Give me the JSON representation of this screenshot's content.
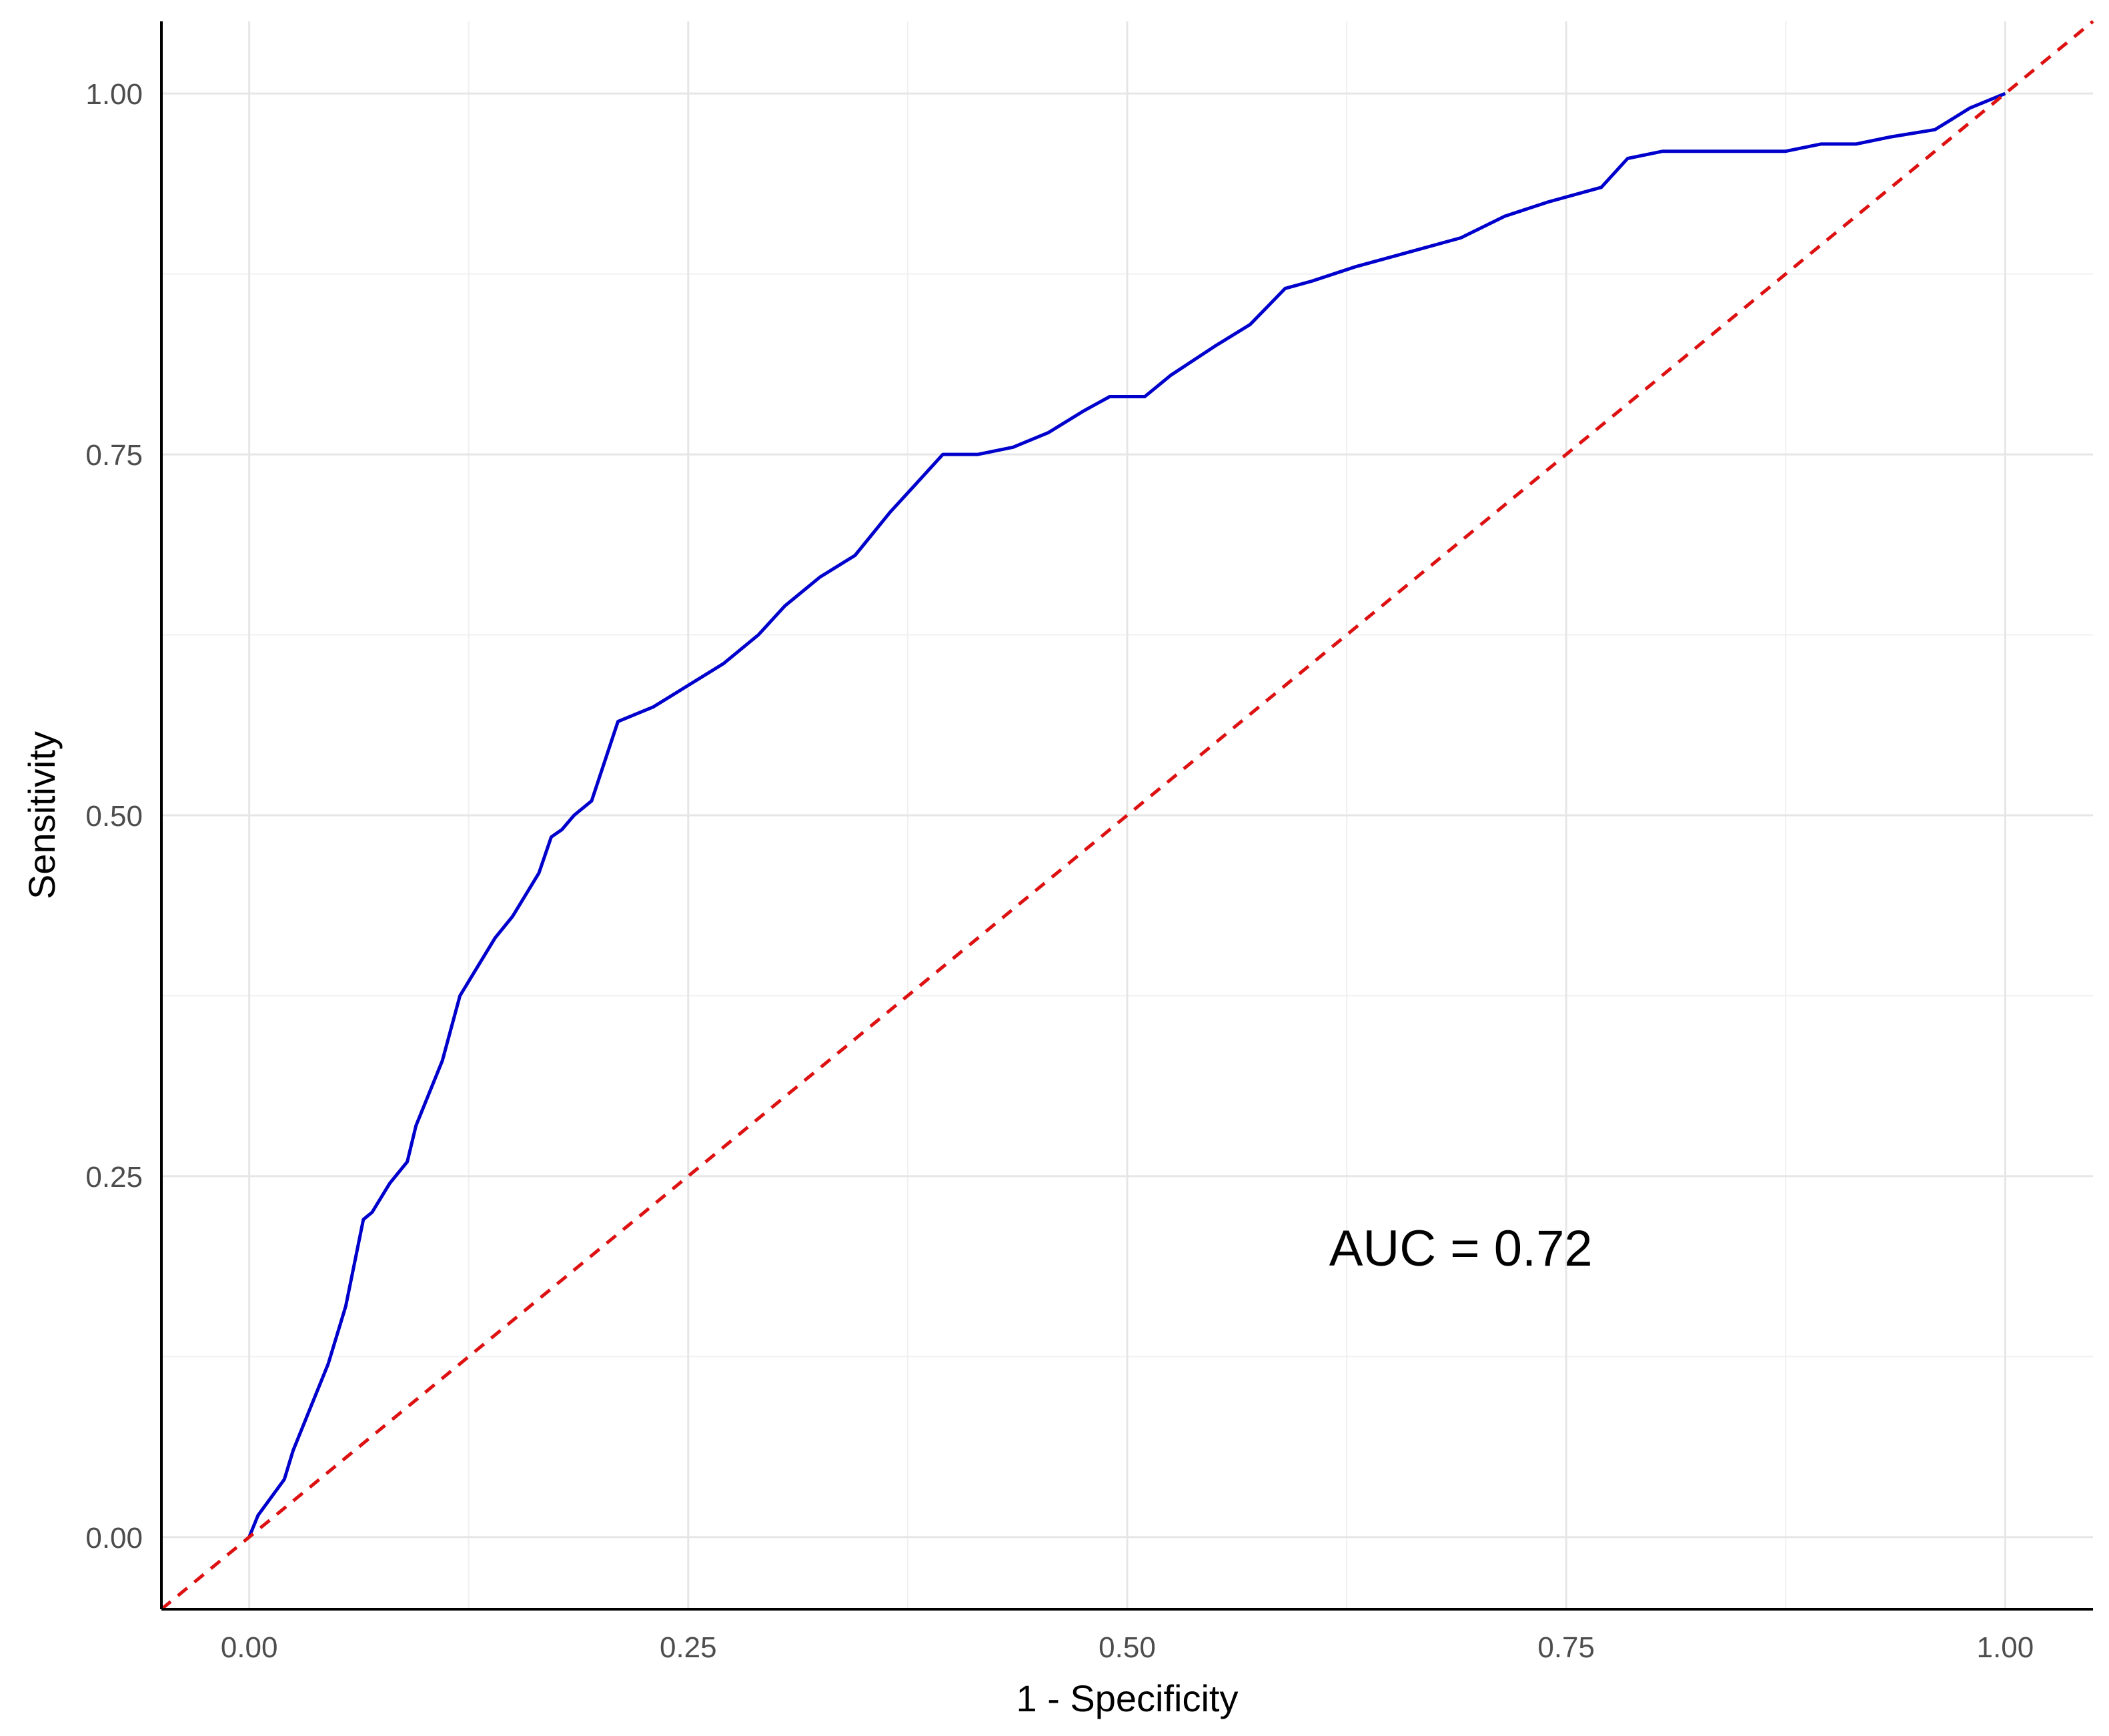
{
  "chart_data": {
    "type": "line",
    "title": "",
    "xlabel": "1 - Specificity",
    "ylabel": "Sensitivity",
    "xlim": [
      -0.05,
      1.05
    ],
    "ylim": [
      -0.05,
      1.05
    ],
    "x_ticks": [
      0,
      0.25,
      0.5,
      0.75,
      1
    ],
    "x_tick_labels": [
      "0.00",
      "0.25",
      "0.50",
      "0.75",
      "1.00"
    ],
    "y_ticks": [
      0,
      0.25,
      0.5,
      0.75,
      1
    ],
    "y_tick_labels": [
      "0.00",
      "0.25",
      "0.50",
      "0.75",
      "1.00"
    ],
    "grid": true,
    "series": [
      {
        "color": "#0000cc",
        "style": "solid",
        "x": [
          0.0,
          0.005,
          0.02,
          0.025,
          0.035,
          0.045,
          0.055,
          0.065,
          0.07,
          0.08,
          0.09,
          0.095,
          0.11,
          0.12,
          0.13,
          0.14,
          0.15,
          0.155,
          0.165,
          0.172,
          0.178,
          0.185,
          0.195,
          0.21,
          0.23,
          0.25,
          0.27,
          0.29,
          0.305,
          0.325,
          0.345,
          0.365,
          0.38,
          0.395,
          0.415,
          0.435,
          0.455,
          0.475,
          0.49,
          0.51,
          0.525,
          0.55,
          0.57,
          0.59,
          0.605,
          0.63,
          0.66,
          0.69,
          0.715,
          0.74,
          0.77,
          0.785,
          0.805,
          0.825,
          0.85,
          0.875,
          0.895,
          0.915,
          0.935,
          0.96,
          0.98,
          1.0
        ],
        "y": [
          0.0,
          0.015,
          0.04,
          0.06,
          0.09,
          0.12,
          0.16,
          0.22,
          0.225,
          0.245,
          0.26,
          0.285,
          0.33,
          0.375,
          0.395,
          0.415,
          0.43,
          0.44,
          0.46,
          0.485,
          0.49,
          0.5,
          0.51,
          0.565,
          0.575,
          0.59,
          0.605,
          0.625,
          0.645,
          0.665,
          0.68,
          0.71,
          0.73,
          0.75,
          0.75,
          0.755,
          0.765,
          0.78,
          0.79,
          0.79,
          0.805,
          0.825,
          0.84,
          0.865,
          0.87,
          0.88,
          0.89,
          0.9,
          0.915,
          0.925,
          0.935,
          0.955,
          0.96,
          0.96,
          0.96,
          0.96,
          0.965,
          0.965,
          0.97,
          0.975,
          0.99,
          1.0
        ]
      },
      {
        "color": "#dd1111",
        "style": "dashed",
        "x": [
          -0.05,
          1.05
        ],
        "y": [
          -0.05,
          1.05
        ]
      }
    ],
    "annotations": [
      {
        "text": "AUC = 0.72",
        "x": 0.69,
        "y": 0.2
      }
    ]
  }
}
